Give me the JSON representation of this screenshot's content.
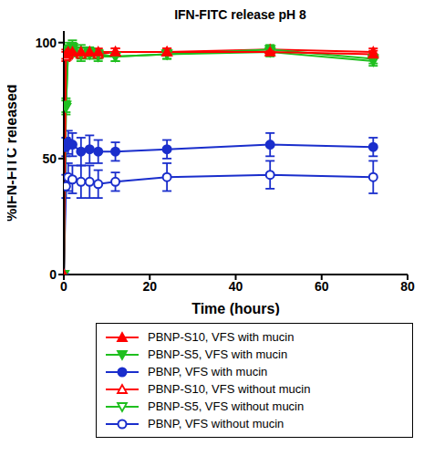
{
  "chart_data": {
    "type": "line",
    "title": "IFN-FITC release pH 8",
    "x_label": "Time (hours)",
    "y_label": "%IFN-FITC released",
    "x": [
      0,
      0.5,
      1,
      2,
      4,
      6,
      8,
      12,
      24,
      48,
      72
    ],
    "xlim": [
      0,
      80
    ],
    "xticks": [
      0,
      20,
      40,
      60,
      80
    ],
    "ylim": [
      0,
      105
    ],
    "yticks": [
      0,
      50,
      100
    ],
    "legend": "bottom",
    "series": [
      {
        "name": "PBNP-S10, VFS with mucin",
        "color": "#ff0000",
        "marker": "triangle",
        "values": [
          0,
          95,
          96,
          96,
          96,
          96,
          96,
          96,
          96,
          96,
          95
        ],
        "errors": [
          0,
          2,
          2,
          1.5,
          1.5,
          1.5,
          1.5,
          1.5,
          1.5,
          1.5,
          1.5
        ]
      },
      {
        "name": "PBNP-S5, VFS with mucin",
        "color": "#1fbf1f",
        "marker": "triangle-down",
        "values": [
          0,
          73,
          97,
          98,
          95,
          96,
          95,
          94,
          95,
          97,
          93
        ],
        "errors": [
          0,
          3,
          3,
          3,
          3,
          2,
          2,
          2,
          2,
          2,
          2
        ]
      },
      {
        "name": "PBNP, VFS with mucin",
        "color": "#1a2ecc",
        "marker": "circle",
        "values": [
          0,
          55,
          57,
          56,
          53,
          54,
          53,
          53,
          54,
          56,
          55
        ],
        "errors": [
          0,
          4,
          5,
          5,
          6,
          6,
          5,
          4,
          4,
          5,
          4
        ]
      },
      {
        "name": "PBNP-S10, VFS without mucin",
        "color": "#ff0000",
        "marker": "triangle-open",
        "values": [
          0,
          94,
          95,
          96,
          95,
          96,
          95,
          96,
          96,
          97,
          96
        ],
        "errors": [
          0,
          2,
          2,
          1.5,
          1.5,
          1.5,
          1.5,
          1.5,
          1.5,
          1.5,
          1.5
        ]
      },
      {
        "name": "PBNP-S5, VFS without mucin",
        "color": "#1fbf1f",
        "marker": "triangle-down-open",
        "values": [
          0,
          72,
          96,
          97,
          96,
          95,
          94,
          94,
          95,
          96,
          92
        ],
        "errors": [
          0,
          3,
          3,
          3,
          3,
          2,
          2,
          2,
          2,
          2,
          2
        ]
      },
      {
        "name": "PBNP, VFS without mucin",
        "color": "#1a2ecc",
        "marker": "circle-open",
        "values": [
          0,
          38,
          42,
          41,
          40,
          40,
          39,
          40,
          42,
          43,
          42
        ],
        "errors": [
          0,
          5,
          6,
          6,
          7,
          7,
          6,
          4,
          6,
          6,
          7
        ]
      }
    ]
  }
}
